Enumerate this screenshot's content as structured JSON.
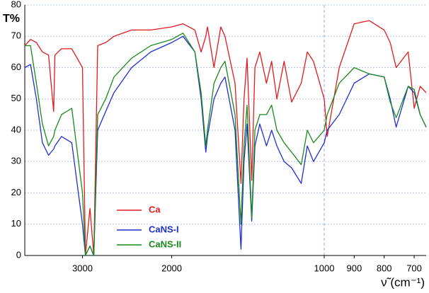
{
  "chart_data": {
    "type": "line",
    "x_label": "ν̃ (cm⁻¹)",
    "y_label": "T%",
    "x": [
      3900,
      3800,
      3700,
      3600,
      3500,
      3420,
      3400,
      3300,
      3150,
      3000,
      2960,
      2920,
      2900,
      2850,
      2800,
      2700,
      2600,
      2400,
      2200,
      2000,
      1900,
      1800,
      1750,
      1713,
      1700,
      1650,
      1600,
      1570,
      1500,
      1460,
      1440,
      1420,
      1390,
      1370,
      1340,
      1300,
      1270,
      1240,
      1200,
      1160,
      1110,
      1080,
      1050,
      1000,
      990,
      950,
      900,
      850,
      800,
      780,
      760,
      720,
      700,
      680,
      660
    ],
    "series": [
      {
        "name": "Ca",
        "color": "#e31a1c",
        "values": [
          67,
          69,
          68,
          65,
          64,
          46,
          64,
          66,
          66,
          60,
          0,
          10,
          15,
          0,
          67,
          68,
          70,
          72,
          72,
          73,
          74,
          72,
          65,
          70,
          73,
          60,
          73,
          70,
          55,
          23,
          50,
          63,
          24,
          60,
          65,
          55,
          62,
          50,
          62,
          49,
          55,
          65,
          62,
          50,
          38,
          60,
          74,
          75,
          72,
          68,
          60,
          65,
          47,
          54,
          52
        ]
      },
      {
        "name": "CaNS-I",
        "color": "#1f2fd0",
        "values": [
          60,
          61,
          50,
          36,
          32,
          34,
          35,
          38,
          36,
          10,
          0,
          2,
          3,
          0,
          40,
          46,
          52,
          60,
          65,
          68,
          70,
          65,
          50,
          33,
          38,
          50,
          55,
          57,
          40,
          2,
          30,
          42,
          11,
          35,
          42,
          35,
          40,
          35,
          30,
          28,
          23,
          35,
          30,
          36,
          40,
          45,
          55,
          58,
          57,
          50,
          41,
          54,
          52,
          45,
          41
        ]
      },
      {
        "name": "CaNS-II",
        "color": "#1a8a1a",
        "values": [
          67,
          67,
          55,
          42,
          35,
          38,
          40,
          45,
          47,
          20,
          0,
          2,
          3,
          0,
          45,
          50,
          57,
          63,
          67,
          69,
          71,
          65,
          52,
          35,
          40,
          55,
          60,
          62,
          45,
          10,
          35,
          48,
          12,
          40,
          45,
          45,
          48,
          40,
          36,
          33,
          29,
          40,
          36,
          40,
          45,
          55,
          60,
          58,
          57,
          49,
          44,
          54,
          53,
          45,
          41
        ]
      }
    ],
    "xlim": [
      3900,
      660
    ],
    "xticks": [
      3000,
      2000,
      1000,
      900,
      800,
      700
    ],
    "x_break": 1000,
    "ylim": [
      0,
      80
    ],
    "yticks": [
      0,
      10,
      20,
      30,
      40,
      50,
      60,
      70,
      80
    ],
    "grid": true
  }
}
